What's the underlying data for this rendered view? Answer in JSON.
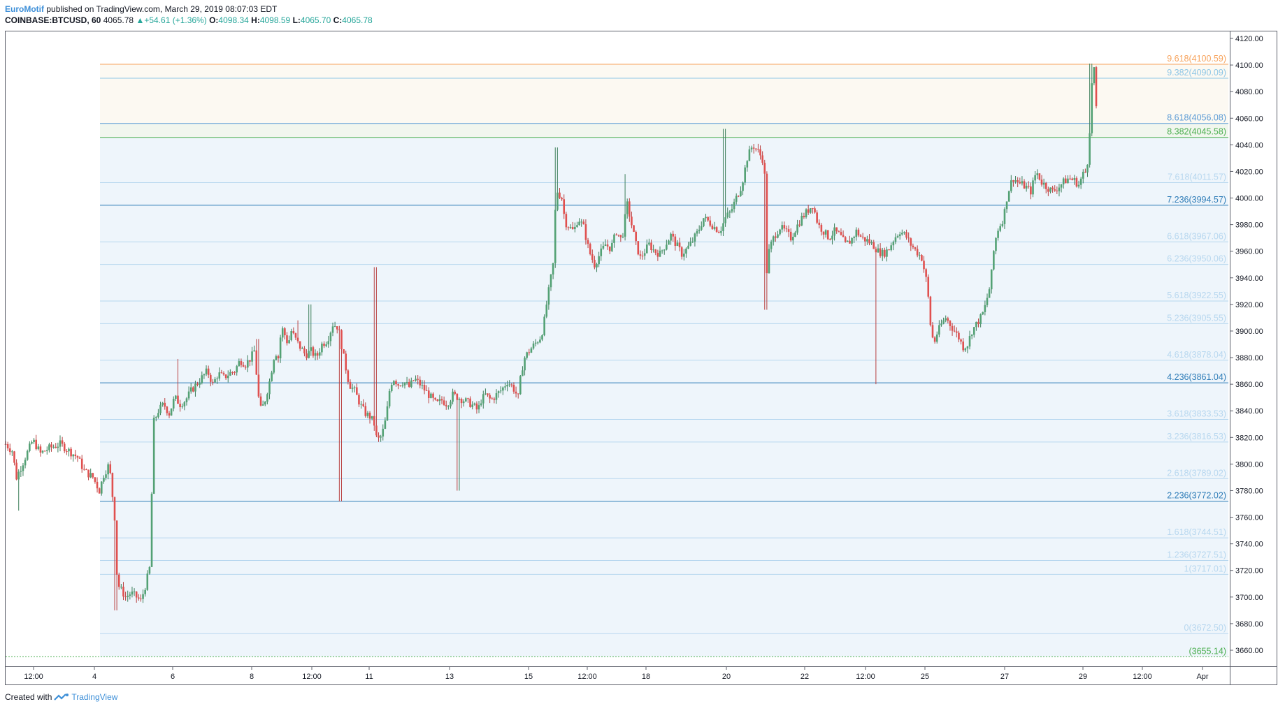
{
  "header": {
    "author": "EuroMotif",
    "published_text": "published on TradingView.com, March 29, 2019 08:07:03 EDT",
    "symbol": "COINBASE:BTCUSD, 60",
    "last": "4065.78",
    "change": "+54.61 (+1.36%)",
    "open_label": "O:",
    "open": "4098.34",
    "high_label": "H:",
    "high": "4098.59",
    "low_label": "L:",
    "low": "4065.70",
    "close_label": "C:",
    "close": "4065.78"
  },
  "footer": {
    "created_with": "Created with",
    "brand": "TradingView"
  },
  "colors": {
    "up": "#53a174",
    "down": "#e0504f",
    "price_axis_text": "#131722"
  },
  "chart_data": {
    "type": "candlestick",
    "ylim": [
      3650,
      4125
    ],
    "y_ticks": [
      3660,
      3680,
      3700,
      3720,
      3740,
      3760,
      3780,
      3800,
      3820,
      3840,
      3860,
      3880,
      3900,
      3920,
      3940,
      3960,
      3980,
      4000,
      4020,
      4040,
      4060,
      4080,
      4100,
      4120
    ],
    "x_ticks": [
      "12:00",
      "4",
      "6",
      "8",
      "12:00",
      "11",
      "13",
      "15",
      "12:00",
      "18",
      "20",
      "22",
      "12:00",
      "25",
      "27",
      "29",
      "12:00",
      "Apr"
    ],
    "fib_levels": [
      {
        "label": "9.618(4100.59)",
        "value": 4100.59,
        "color": "#f7a35c",
        "strong": true
      },
      {
        "label": "9.382(4090.09)",
        "value": 4090.09,
        "color": "#8ec6e6",
        "strong": false
      },
      {
        "label": "8.618(4056.08)",
        "value": 4056.08,
        "color": "#5b9bd5",
        "strong": true
      },
      {
        "label": "8.382(4045.58)",
        "value": 4045.58,
        "color": "#4caf50",
        "strong": true
      },
      {
        "label": "7.618(4011.57)",
        "value": 4011.57,
        "color": "#b7d7ef",
        "strong": false
      },
      {
        "label": "7.236(3994.57)",
        "value": 3994.57,
        "color": "#2f7db8",
        "strong": true
      },
      {
        "label": "6.618(3967.06)",
        "value": 3967.06,
        "color": "#b7d7ef",
        "strong": false
      },
      {
        "label": "6.236(3950.06)",
        "value": 3950.06,
        "color": "#b7d7ef",
        "strong": false
      },
      {
        "label": "5.618(3922.55)",
        "value": 3922.55,
        "color": "#b7d7ef",
        "strong": false
      },
      {
        "label": "5.236(3905.55)",
        "value": 3905.55,
        "color": "#b7d7ef",
        "strong": false
      },
      {
        "label": "4.618(3878.04)",
        "value": 3878.04,
        "color": "#b7d7ef",
        "strong": false
      },
      {
        "label": "4.236(3861.04)",
        "value": 3861.04,
        "color": "#2f7db8",
        "strong": true
      },
      {
        "label": "3.618(3833.53)",
        "value": 3833.53,
        "color": "#b7d7ef",
        "strong": false
      },
      {
        "label": "3.236(3816.53)",
        "value": 3816.53,
        "color": "#b7d7ef",
        "strong": false
      },
      {
        "label": "2.618(3789.02)",
        "value": 3789.02,
        "color": "#b7d7ef",
        "strong": false
      },
      {
        "label": "2.236(3772.02)",
        "value": 3772.02,
        "color": "#2f7db8",
        "strong": true
      },
      {
        "label": "1.618(3744.51)",
        "value": 3744.51,
        "color": "#b7d7ef",
        "strong": false
      },
      {
        "label": "1.236(3727.51)",
        "value": 3727.51,
        "color": "#b7d7ef",
        "strong": false
      },
      {
        "label": "1(3717.01)",
        "value": 3717.01,
        "color": "#b7d7ef",
        "strong": false
      },
      {
        "label": "0(3672.50)",
        "value": 3672.5,
        "color": "#b7d7ef",
        "strong": false
      },
      {
        "label": "(3655.14)",
        "value": 3655.14,
        "color": "#4caf50",
        "strong": true
      }
    ],
    "price_path": [
      [
        0,
        3815
      ],
      [
        6,
        3810
      ],
      [
        10,
        3790
      ],
      [
        18,
        3805
      ],
      [
        25,
        3818
      ],
      [
        32,
        3808
      ],
      [
        40,
        3812
      ],
      [
        50,
        3815
      ],
      [
        58,
        3810
      ],
      [
        66,
        3805
      ],
      [
        72,
        3795
      ],
      [
        80,
        3790
      ],
      [
        86,
        3780
      ],
      [
        90,
        3792
      ],
      [
        95,
        3800
      ],
      [
        100,
        3760
      ],
      [
        102,
        3718
      ],
      [
        104,
        3708
      ],
      [
        110,
        3700
      ],
      [
        115,
        3703
      ],
      [
        120,
        3700
      ],
      [
        124,
        3697
      ],
      [
        128,
        3708
      ],
      [
        131,
        3718
      ],
      [
        133,
        3725
      ],
      [
        135,
        3830
      ],
      [
        140,
        3840
      ],
      [
        145,
        3845
      ],
      [
        150,
        3838
      ],
      [
        155,
        3850
      ],
      [
        160,
        3845
      ],
      [
        165,
        3848
      ],
      [
        170,
        3855
      ],
      [
        175,
        3860
      ],
      [
        180,
        3865
      ],
      [
        185,
        3870
      ],
      [
        190,
        3860
      ],
      [
        195,
        3868
      ],
      [
        200,
        3865
      ],
      [
        205,
        3868
      ],
      [
        210,
        3870
      ],
      [
        215,
        3878
      ],
      [
        220,
        3875
      ],
      [
        225,
        3880
      ],
      [
        228,
        3885
      ],
      [
        231,
        3860
      ],
      [
        233,
        3840
      ],
      [
        237,
        3845
      ],
      [
        242,
        3862
      ],
      [
        247,
        3885
      ],
      [
        250,
        3880
      ],
      [
        253,
        3903
      ],
      [
        256,
        3897
      ],
      [
        259,
        3890
      ],
      [
        262,
        3900
      ],
      [
        265,
        3895
      ],
      [
        270,
        3888
      ],
      [
        275,
        3882
      ],
      [
        280,
        3885
      ],
      [
        285,
        3880
      ],
      [
        290,
        3890
      ],
      [
        295,
        3893
      ],
      [
        300,
        3905
      ],
      [
        305,
        3903
      ],
      [
        310,
        3880
      ],
      [
        315,
        3860
      ],
      [
        320,
        3855
      ],
      [
        325,
        3845
      ],
      [
        330,
        3838
      ],
      [
        335,
        3835
      ],
      [
        338,
        3830
      ],
      [
        340,
        3820
      ],
      [
        343,
        3818
      ],
      [
        346,
        3825
      ],
      [
        349,
        3835
      ],
      [
        352,
        3855
      ],
      [
        355,
        3865
      ],
      [
        360,
        3860
      ],
      [
        365,
        3862
      ],
      [
        370,
        3858
      ],
      [
        375,
        3864
      ],
      [
        380,
        3860
      ],
      [
        385,
        3855
      ],
      [
        390,
        3850
      ],
      [
        395,
        3845
      ],
      [
        400,
        3848
      ],
      [
        405,
        3845
      ],
      [
        410,
        3852
      ],
      [
        415,
        3850
      ],
      [
        420,
        3848
      ],
      [
        425,
        3846
      ],
      [
        430,
        3843
      ],
      [
        433,
        3840
      ],
      [
        436,
        3848
      ],
      [
        440,
        3852
      ],
      [
        445,
        3848
      ],
      [
        450,
        3852
      ],
      [
        455,
        3856
      ],
      [
        460,
        3862
      ],
      [
        465,
        3858
      ],
      [
        470,
        3850
      ],
      [
        473,
        3870
      ],
      [
        476,
        3880
      ],
      [
        480,
        3885
      ],
      [
        485,
        3890
      ],
      [
        490,
        3895
      ],
      [
        493,
        3902
      ],
      [
        496,
        3920
      ],
      [
        499,
        3935
      ],
      [
        502,
        3950
      ],
      [
        504,
        3990
      ],
      [
        506,
        4005
      ],
      [
        510,
        4000
      ],
      [
        513,
        3982
      ],
      [
        517,
        3978
      ],
      [
        521,
        3975
      ],
      [
        525,
        3985
      ],
      [
        530,
        3978
      ],
      [
        535,
        3960
      ],
      [
        540,
        3950
      ],
      [
        545,
        3958
      ],
      [
        550,
        3965
      ],
      [
        555,
        3962
      ],
      [
        560,
        3975
      ],
      [
        565,
        3968
      ],
      [
        568,
        3985
      ],
      [
        570,
        3995
      ],
      [
        574,
        3980
      ],
      [
        578,
        3965
      ],
      [
        582,
        3955
      ],
      [
        586,
        3960
      ],
      [
        590,
        3965
      ],
      [
        595,
        3960
      ],
      [
        600,
        3958
      ],
      [
        605,
        3965
      ],
      [
        610,
        3972
      ],
      [
        615,
        3965
      ],
      [
        620,
        3958
      ],
      [
        625,
        3962
      ],
      [
        630,
        3968
      ],
      [
        635,
        3975
      ],
      [
        640,
        3985
      ],
      [
        645,
        3982
      ],
      [
        650,
        3978
      ],
      [
        655,
        3975
      ],
      [
        660,
        3985
      ],
      [
        665,
        3990
      ],
      [
        670,
        4000
      ],
      [
        675,
        4010
      ],
      [
        680,
        4030
      ],
      [
        685,
        4040
      ],
      [
        690,
        4035
      ],
      [
        695,
        4028
      ],
      [
        697,
        4005
      ],
      [
        698,
        3945
      ],
      [
        700,
        3960
      ],
      [
        703,
        3968
      ],
      [
        706,
        3973
      ],
      [
        710,
        3978
      ],
      [
        715,
        3975
      ],
      [
        720,
        3970
      ],
      [
        725,
        3978
      ],
      [
        730,
        3985
      ],
      [
        735,
        3990
      ],
      [
        740,
        3995
      ],
      [
        745,
        3980
      ],
      [
        750,
        3975
      ],
      [
        755,
        3970
      ],
      [
        760,
        3975
      ],
      [
        765,
        3972
      ],
      [
        770,
        3965
      ],
      [
        775,
        3968
      ],
      [
        780,
        3975
      ],
      [
        785,
        3970
      ],
      [
        790,
        3968
      ],
      [
        795,
        3965
      ],
      [
        800,
        3960
      ],
      [
        805,
        3958
      ],
      [
        810,
        3962
      ],
      [
        815,
        3970
      ],
      [
        820,
        3975
      ],
      [
        825,
        3972
      ],
      [
        830,
        3965
      ],
      [
        835,
        3960
      ],
      [
        840,
        3955
      ],
      [
        845,
        3935
      ],
      [
        848,
        3905
      ],
      [
        851,
        3890
      ],
      [
        854,
        3898
      ],
      [
        858,
        3905
      ],
      [
        862,
        3910
      ],
      [
        866,
        3905
      ],
      [
        870,
        3900
      ],
      [
        874,
        3895
      ],
      [
        878,
        3888
      ],
      [
        882,
        3890
      ],
      [
        886,
        3900
      ],
      [
        890,
        3905
      ],
      [
        894,
        3910
      ],
      [
        897,
        3915
      ],
      [
        900,
        3925
      ],
      [
        903,
        3935
      ],
      [
        906,
        3960
      ],
      [
        909,
        3975
      ],
      [
        912,
        3980
      ],
      [
        915,
        3985
      ],
      [
        918,
        4000
      ],
      [
        921,
        4010
      ],
      [
        924,
        4015
      ],
      [
        928,
        4012
      ],
      [
        932,
        4010
      ],
      [
        936,
        4008
      ],
      [
        940,
        4005
      ],
      [
        945,
        4020
      ],
      [
        950,
        4012
      ],
      [
        955,
        4008
      ],
      [
        960,
        4005
      ],
      [
        965,
        4008
      ],
      [
        970,
        4012
      ],
      [
        975,
        4015
      ],
      [
        980,
        4013
      ],
      [
        984,
        4010
      ],
      [
        988,
        4018
      ],
      [
        991,
        4020
      ],
      [
        993,
        4035
      ],
      [
        995,
        4068
      ],
      [
        996,
        4085
      ],
      [
        997,
        4095
      ],
      [
        998,
        4098
      ],
      [
        999,
        4080
      ],
      [
        1000,
        4066
      ]
    ],
    "spikes": [
      [
        12,
        3765
      ],
      [
        84,
        3790
      ],
      [
        101,
        3690
      ],
      [
        158,
        3879
      ],
      [
        231,
        3894
      ],
      [
        268,
        3908
      ],
      [
        279,
        3920
      ],
      [
        307,
        3772
      ],
      [
        339,
        3948
      ],
      [
        415,
        3780
      ],
      [
        505,
        4038
      ],
      [
        568,
        4018
      ],
      [
        659,
        4052
      ],
      [
        697,
        3916
      ],
      [
        798,
        3860
      ],
      [
        995,
        4101
      ]
    ]
  }
}
